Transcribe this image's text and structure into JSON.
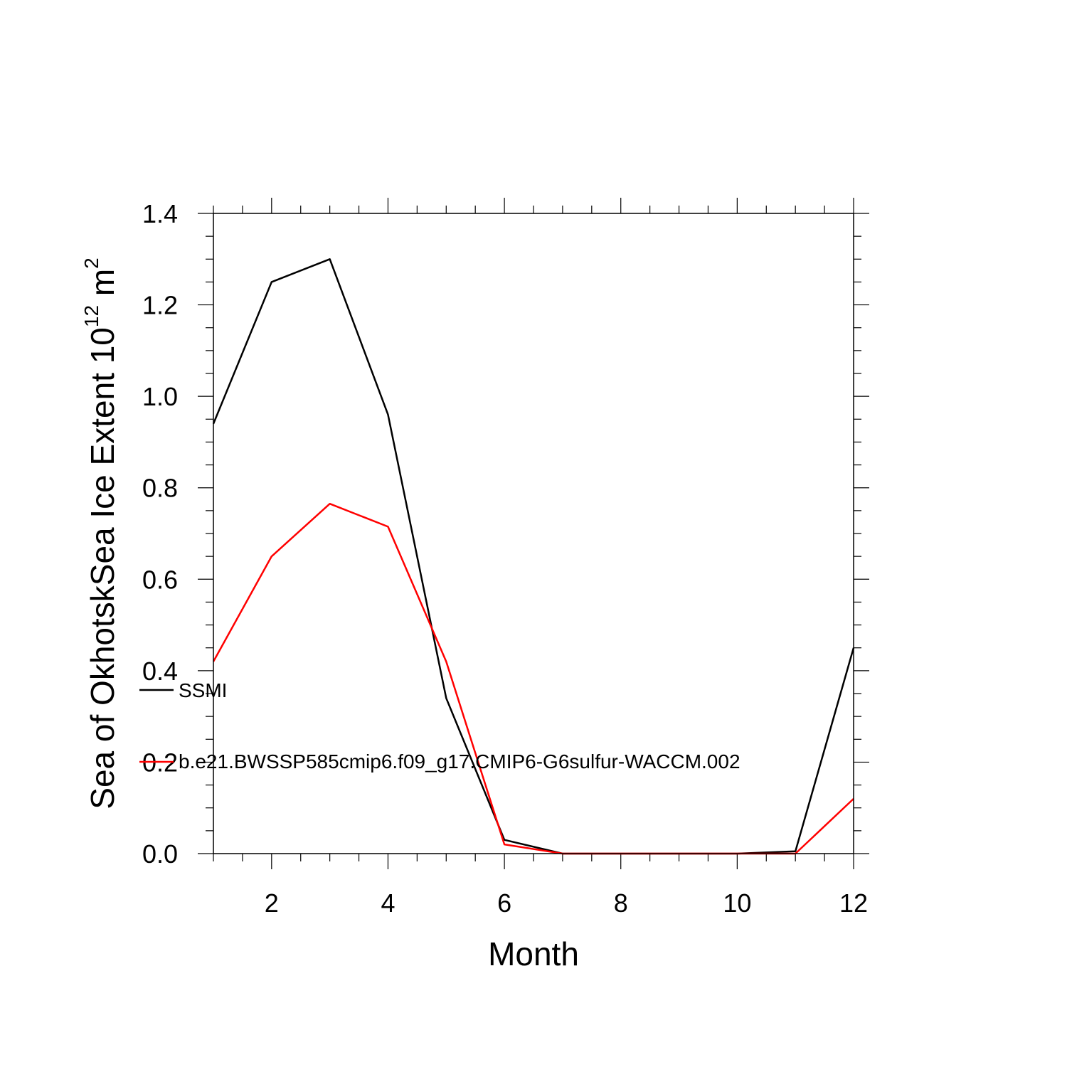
{
  "chart_data": {
    "type": "line",
    "xlabel": "Month",
    "ylabel": "Sea of OkhotskSea Ice Extent 10",
    "ylabel_sup": "12",
    "ylabel_unit": "m",
    "ylabel_unit_sup": "2",
    "xlim": [
      1,
      12
    ],
    "ylim": [
      0,
      1.4
    ],
    "x_ticks": [
      2,
      4,
      6,
      8,
      10,
      12
    ],
    "y_ticks": [
      "0.0",
      "0.2",
      "0.4",
      "0.6",
      "0.8",
      "1.0",
      "1.2",
      "1.4"
    ],
    "grid": false,
    "legend_position": "left, overlapping plot",
    "x": [
      1,
      2,
      3,
      4,
      5,
      6,
      7,
      8,
      9,
      10,
      11,
      12
    ],
    "series": [
      {
        "name": "SSMI",
        "color": "#000000",
        "values": [
          0.94,
          1.25,
          1.3,
          0.96,
          0.34,
          0.03,
          0.0,
          0.0,
          0.0,
          0.0,
          0.005,
          0.45
        ]
      },
      {
        "name": "b.e21.BWSSP585cmip6.f09_g17.CMIP6-G6sulfur-WACCM.002",
        "color": "#ff0000",
        "values": [
          0.42,
          0.65,
          0.765,
          0.715,
          0.42,
          0.02,
          0.0,
          0.0,
          0.0,
          0.0,
          0.0,
          0.12
        ]
      }
    ]
  }
}
